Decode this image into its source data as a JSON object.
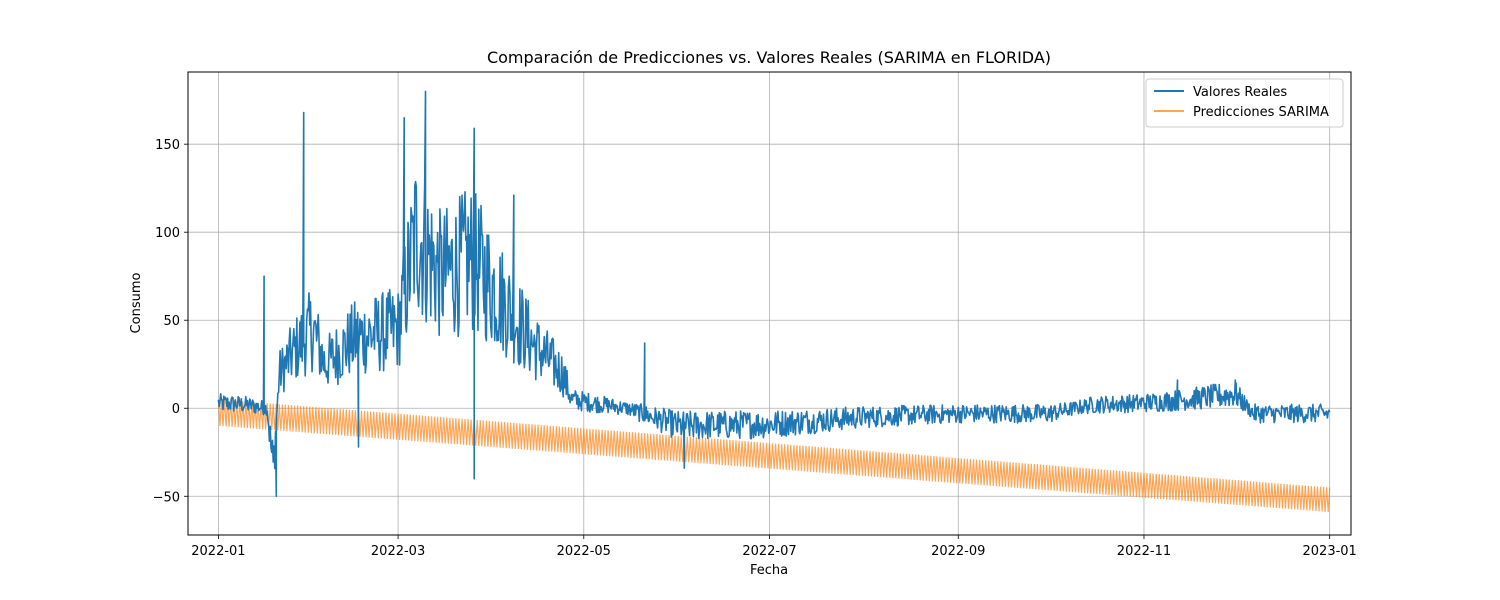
{
  "chart_data": {
    "type": "line",
    "title": "Comparación de Predicciones vs. Valores Reales (SARIMA en FLORIDA)",
    "xlabel": "Fecha",
    "ylabel": "Consumo",
    "x_range": [
      "2021-12-22",
      "2023-01-08"
    ],
    "ylim": [
      -72,
      191
    ],
    "grid": true,
    "legend_position": "upper right",
    "x_ticks": [
      "2022-01",
      "2022-03",
      "2022-05",
      "2022-07",
      "2022-09",
      "2022-11",
      "2023-01"
    ],
    "y_ticks": [
      -50,
      0,
      50,
      100,
      150
    ],
    "y_tick_labels": [
      "−50",
      "0",
      "50",
      "100",
      "150"
    ],
    "series": [
      {
        "name": "Valores Reales",
        "color": "#1f77b4",
        "approx_daily_mean": [
          {
            "date": "2022-01-01",
            "value": 3
          },
          {
            "date": "2022-01-10",
            "value": 2
          },
          {
            "date": "2022-01-17",
            "value": 0
          },
          {
            "date": "2022-01-19",
            "value": -35
          },
          {
            "date": "2022-01-21",
            "value": 20
          },
          {
            "date": "2022-01-27",
            "value": 35
          },
          {
            "date": "2022-02-01",
            "value": 45
          },
          {
            "date": "2022-02-05",
            "value": 25
          },
          {
            "date": "2022-02-15",
            "value": 40
          },
          {
            "date": "2022-03-01",
            "value": 45
          },
          {
            "date": "2022-03-07",
            "value": 100
          },
          {
            "date": "2022-03-15",
            "value": 75
          },
          {
            "date": "2022-03-25",
            "value": 85
          },
          {
            "date": "2022-04-05",
            "value": 60
          },
          {
            "date": "2022-04-15",
            "value": 35
          },
          {
            "date": "2022-04-24",
            "value": 20
          },
          {
            "date": "2022-04-27",
            "value": 5
          },
          {
            "date": "2022-05-15",
            "value": 0
          },
          {
            "date": "2022-06-01",
            "value": -10
          },
          {
            "date": "2022-07-01",
            "value": -9
          },
          {
            "date": "2022-08-01",
            "value": -5
          },
          {
            "date": "2022-09-01",
            "value": -3
          },
          {
            "date": "2022-10-01",
            "value": -3
          },
          {
            "date": "2022-10-15",
            "value": 2
          },
          {
            "date": "2022-11-01",
            "value": 3
          },
          {
            "date": "2022-11-15",
            "value": 5
          },
          {
            "date": "2022-12-01",
            "value": 8
          },
          {
            "date": "2022-12-07",
            "value": -3
          },
          {
            "date": "2023-01-01",
            "value": -3
          }
        ],
        "spikes": [
          {
            "date": "2022-01-16",
            "value": 75
          },
          {
            "date": "2022-01-20",
            "value": -50
          },
          {
            "date": "2022-01-29",
            "value": 168
          },
          {
            "date": "2022-02-16",
            "value": -22
          },
          {
            "date": "2022-03-03",
            "value": 165
          },
          {
            "date": "2022-03-10",
            "value": 180
          },
          {
            "date": "2022-03-26",
            "value": 159
          },
          {
            "date": "2022-03-26",
            "value": -40
          },
          {
            "date": "2022-04-08",
            "value": 121
          },
          {
            "date": "2022-05-21",
            "value": 37
          },
          {
            "date": "2022-06-03",
            "value": -34
          },
          {
            "date": "2022-11-12",
            "value": 16
          },
          {
            "date": "2022-12-01",
            "value": 16
          }
        ]
      },
      {
        "name": "Predicciones SARIMA",
        "color": "#ff7f0e",
        "trend_upper": [
          {
            "date": "2022-01-01",
            "value": 5
          },
          {
            "date": "2023-01-01",
            "value": -45
          }
        ],
        "trend_lower": [
          {
            "date": "2022-01-01",
            "value": -10
          },
          {
            "date": "2023-01-01",
            "value": -59
          }
        ]
      }
    ]
  }
}
